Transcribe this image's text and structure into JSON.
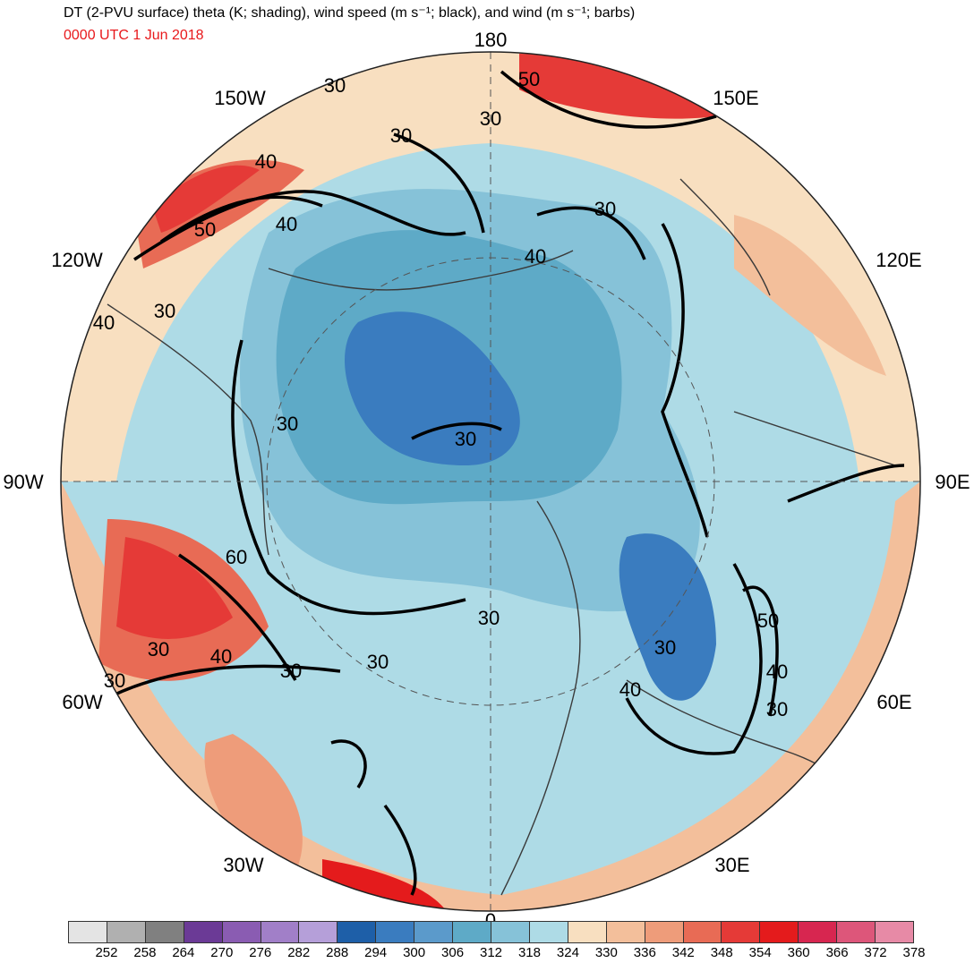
{
  "title": "DT (2-PVU surface) theta (K; shading), wind speed (m s⁻¹; black), and wind (m s⁻¹; barbs)",
  "subtitle": "0000 UTC 1 Jun 2018",
  "colors": {
    "subtitle": "#e8191c",
    "contour": "#000000",
    "coast": "#3a3a3a",
    "ocean_base": "#aedbe6"
  },
  "longitude_labels": [
    "180",
    "150E",
    "120E",
    "90E",
    "60E",
    "30E",
    "0",
    "30W",
    "60W",
    "90W",
    "120W",
    "150W"
  ],
  "wind_speed_contour_labels": [
    "30",
    "30",
    "40",
    "50",
    "50",
    "30",
    "30",
    "30",
    "40",
    "40",
    "30",
    "60",
    "40",
    "30",
    "30",
    "30",
    "30",
    "30",
    "40",
    "50",
    "40",
    "30",
    "30",
    "40",
    "30"
  ],
  "colorbar": {
    "ticks": [
      "252",
      "258",
      "264",
      "270",
      "276",
      "282",
      "288",
      "294",
      "300",
      "306",
      "312",
      "318",
      "324",
      "330",
      "336",
      "342",
      "348",
      "354",
      "360",
      "366",
      "372",
      "378"
    ],
    "colors": [
      "#e4e4e4",
      "#b0b0b0",
      "#808080",
      "#6b3a96",
      "#8a5cb2",
      "#a17fc8",
      "#b59fd9",
      "#1e5fa8",
      "#3a7cbf",
      "#5b9acb",
      "#5eaac7",
      "#86c2d8",
      "#aedbe6",
      "#f8dfc0",
      "#f3bf9b",
      "#ee9c7a",
      "#e86b55",
      "#e53a37",
      "#e41b1c",
      "#d72650",
      "#dd567a",
      "#e78aa6"
    ]
  }
}
